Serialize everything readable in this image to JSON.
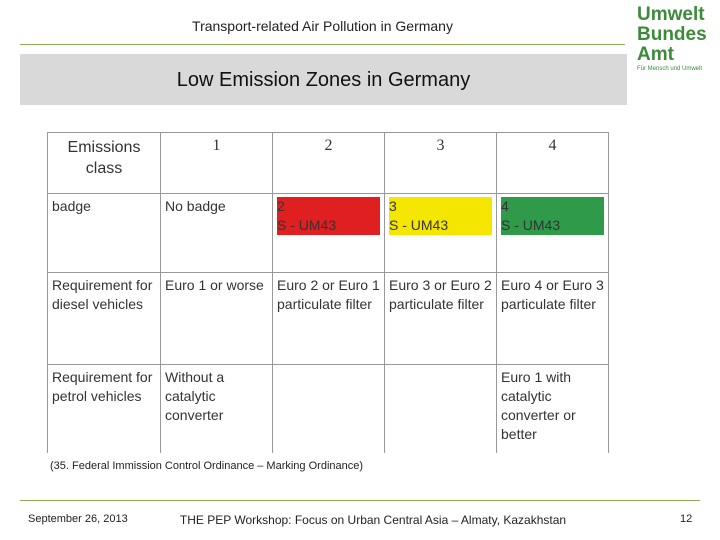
{
  "header": {
    "title": "Transport-related Air Pollution in Germany",
    "logo": [
      "Umwelt",
      "Bundes",
      "Amt"
    ],
    "logo_tagline": "Für Mensch und Umwelt"
  },
  "banner": {
    "title": "Low Emission Zones in Germany"
  },
  "table": {
    "columns": [
      "Emissions class",
      "1",
      "2",
      "3",
      "4"
    ],
    "rows": [
      [
        "badge",
        "No badge",
        null,
        null,
        null
      ],
      [
        "Requirement for diesel vehicles",
        "Euro 1 or worse",
        "Euro 2 or Euro 1 particulate filter",
        "Euro 3 or Euro 2 particulate filter",
        "Euro 4 or Euro 3 particulate filter"
      ],
      [
        "Requirement for petrol vehicles",
        "Without a catalytic converter",
        null,
        null,
        "Euro 1 with catalytic converter or better"
      ]
    ],
    "badges": [
      {
        "number": "2",
        "code": "S - UM43"
      },
      {
        "number": "3",
        "code": "S - UM43"
      },
      {
        "number": "4",
        "code": "S - UM43"
      }
    ]
  },
  "footnote": "(35. Federal Immission Control Ordinance – Marking Ordinance)",
  "footer": {
    "date": "September 26, 2013",
    "event": "THE PEP Workshop: Focus on Urban Central Asia – Almaty, Kazakhstan",
    "page": "12"
  }
}
